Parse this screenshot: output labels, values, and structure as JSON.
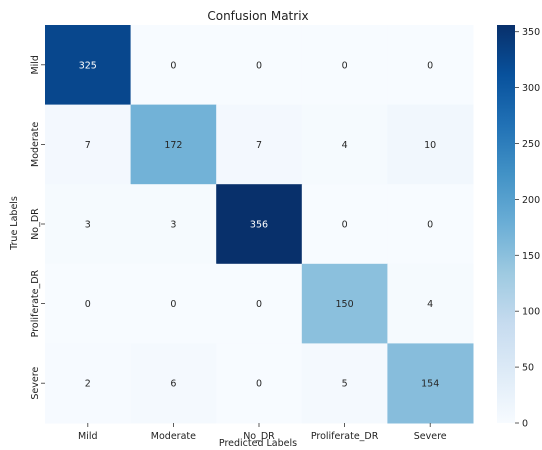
{
  "chart_data": {
    "type": "heatmap",
    "title": "Confusion Matrix",
    "xlabel": "Predicted Labels",
    "ylabel": "True Labels",
    "x_categories": [
      "Mild",
      "Moderate",
      "No_DR",
      "Proliferate_DR",
      "Severe"
    ],
    "y_categories": [
      "Mild",
      "Moderate",
      "No_DR",
      "Proliferate_DR",
      "Severe"
    ],
    "values": [
      [
        325,
        0,
        0,
        0,
        0
      ],
      [
        7,
        172,
        7,
        4,
        10
      ],
      [
        3,
        3,
        356,
        0,
        0
      ],
      [
        0,
        0,
        0,
        150,
        4
      ],
      [
        2,
        6,
        0,
        5,
        154
      ]
    ],
    "colorbar": {
      "min": 0,
      "max": 356,
      "ticks": [
        0,
        50,
        100,
        150,
        200,
        250,
        300,
        350
      ],
      "colormap": "Blues"
    }
  }
}
